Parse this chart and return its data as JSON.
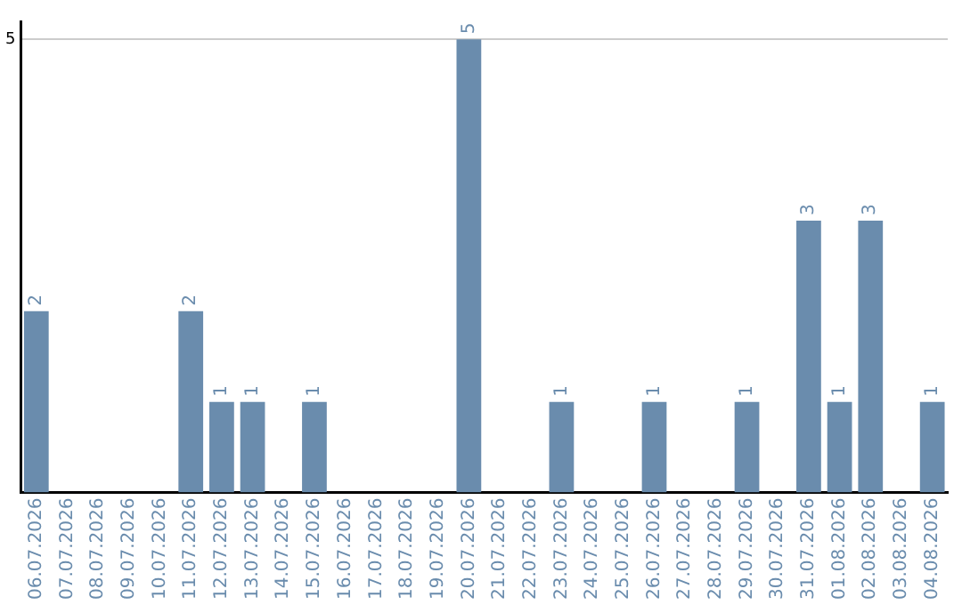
{
  "chart_data": {
    "type": "bar",
    "categories": [
      "06.07.2026",
      "07.07.2026",
      "08.07.2026",
      "09.07.2026",
      "10.07.2026",
      "11.07.2026",
      "12.07.2026",
      "13.07.2026",
      "14.07.2026",
      "15.07.2026",
      "16.07.2026",
      "17.07.2026",
      "18.07.2026",
      "19.07.2026",
      "20.07.2026",
      "21.07.2026",
      "22.07.2026",
      "23.07.2026",
      "24.07.2026",
      "25.07.2026",
      "26.07.2026",
      "27.07.2026",
      "28.07.2026",
      "29.07.2026",
      "30.07.2026",
      "31.07.2026",
      "01.08.2026",
      "02.08.2026",
      "03.08.2026",
      "04.08.2026"
    ],
    "values": [
      2,
      0,
      0,
      0,
      0,
      2,
      1,
      1,
      0,
      1,
      0,
      0,
      0,
      0,
      5,
      0,
      0,
      1,
      0,
      0,
      1,
      0,
      0,
      1,
      0,
      3,
      1,
      3,
      0,
      1
    ],
    "value_labels": [
      "2",
      null,
      null,
      null,
      null,
      "2",
      "1",
      "1",
      null,
      "1",
      null,
      null,
      null,
      null,
      "5",
      null,
      null,
      "1",
      null,
      null,
      "1",
      null,
      null,
      "1",
      null,
      "3",
      "1",
      "3",
      null,
      "1"
    ],
    "color": "#6a8cad",
    "ylim": [
      0,
      5.2
    ],
    "yticks": [
      5
    ],
    "grid": "y",
    "legend": false
  }
}
